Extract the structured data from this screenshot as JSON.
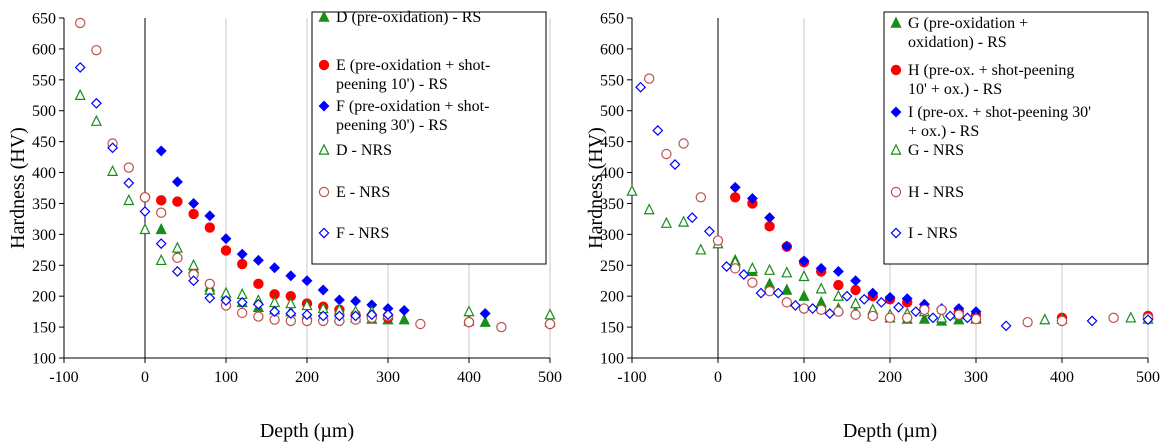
{
  "chart_data": [
    {
      "type": "scatter",
      "xlabel": "Depth (µm)",
      "ylabel": "Hardness (HV)",
      "xlim": [
        -100,
        500
      ],
      "ylim": [
        100,
        650
      ],
      "xticks": [
        -100,
        0,
        100,
        200,
        300,
        400,
        500
      ],
      "yticks": [
        100,
        150,
        200,
        250,
        300,
        350,
        400,
        450,
        500,
        550,
        600,
        650
      ],
      "grid": "vertical",
      "legend_position": "top-right",
      "series": [
        {
          "name": "D (pre-oxidation) - RS",
          "marker": "triangle",
          "filled": true,
          "color": "#1a8c1a",
          "x": [
            20,
            40,
            60,
            80,
            100,
            120,
            140,
            160,
            180,
            200,
            220,
            240,
            260,
            280,
            300,
            320,
            400,
            420,
            500
          ],
          "y": [
            308,
            268,
            245,
            215,
            200,
            190,
            182,
            178,
            175,
            170,
            168,
            166,
            165,
            163,
            162,
            162,
            160,
            158,
            158
          ]
        },
        {
          "name": "E (pre-oxidation + shot-peening 10') - RS",
          "marker": "circle",
          "filled": true,
          "color": "#ff0000",
          "x": [
            0,
            20,
            40,
            60,
            80,
            100,
            120,
            140,
            160,
            180,
            200,
            220,
            240,
            260,
            280,
            300,
            400,
            500
          ],
          "y": [
            360,
            355,
            353,
            333,
            311,
            274,
            252,
            220,
            203,
            200,
            188,
            183,
            178,
            170,
            168,
            165,
            158,
            155
          ]
        },
        {
          "name": "F (pre-oxidation + shot-peening 30') - RS",
          "marker": "diamond",
          "filled": true,
          "color": "#0000ff",
          "x": [
            20,
            40,
            60,
            80,
            100,
            120,
            140,
            160,
            180,
            200,
            220,
            240,
            260,
            280,
            300,
            320,
            420,
            500
          ],
          "y": [
            435,
            385,
            350,
            330,
            293,
            268,
            258,
            246,
            233,
            225,
            210,
            194,
            192,
            186,
            180,
            177,
            172,
            156
          ]
        },
        {
          "name": "D - NRS",
          "marker": "triangle",
          "filled": false,
          "color": "#1a8c1a",
          "x": [
            -80,
            -60,
            -40,
            -20,
            0,
            20,
            40,
            60,
            80,
            100,
            120,
            140,
            160,
            180,
            200,
            220,
            240,
            260,
            280,
            300,
            400,
            500
          ],
          "y": [
            525,
            483,
            402,
            355,
            308,
            258,
            278,
            250,
            210,
            205,
            203,
            193,
            190,
            188,
            185,
            180,
            178,
            175,
            175,
            170,
            175,
            170
          ]
        },
        {
          "name": "E - NRS",
          "marker": "circle",
          "filled": false,
          "color": "#c0504d",
          "x": [
            -80,
            -60,
            -40,
            -20,
            0,
            20,
            40,
            60,
            80,
            100,
            120,
            140,
            160,
            180,
            200,
            220,
            240,
            260,
            280,
            300,
            340,
            400,
            440,
            500
          ],
          "y": [
            642,
            598,
            447,
            408,
            360,
            335,
            262,
            235,
            220,
            185,
            173,
            167,
            162,
            160,
            160,
            160,
            160,
            162,
            165,
            168,
            155,
            158,
            150,
            155
          ]
        },
        {
          "name": "F - NRS",
          "marker": "diamond",
          "filled": false,
          "color": "#0000ff",
          "x": [
            -80,
            -60,
            -40,
            -20,
            0,
            20,
            40,
            60,
            80,
            100,
            120,
            140,
            160,
            180,
            200,
            220,
            240,
            260,
            280,
            300
          ],
          "y": [
            570,
            512,
            440,
            383,
            337,
            285,
            240,
            225,
            197,
            193,
            190,
            187,
            175,
            172,
            170,
            168,
            168,
            168,
            170,
            170
          ]
        }
      ]
    },
    {
      "type": "scatter",
      "xlabel": "Depth (µm)",
      "ylabel": "Hardness (HV)",
      "xlim": [
        -100,
        500
      ],
      "ylim": [
        100,
        650
      ],
      "xticks": [
        -100,
        0,
        100,
        200,
        300,
        400,
        500
      ],
      "yticks": [
        100,
        150,
        200,
        250,
        300,
        350,
        400,
        450,
        500,
        550,
        600,
        650
      ],
      "grid": "vertical",
      "legend_position": "top-right",
      "series": [
        {
          "name": "G (pre-oxidation + oxidation) - RS",
          "marker": "triangle",
          "filled": true,
          "color": "#1a8c1a",
          "x": [
            20,
            40,
            60,
            80,
            100,
            120,
            140,
            160,
            180,
            200,
            220,
            240,
            260,
            280,
            300
          ],
          "y": [
            258,
            240,
            220,
            210,
            200,
            190,
            180,
            175,
            172,
            165,
            163,
            163,
            160,
            162,
            163
          ]
        },
        {
          "name": "H (pre-ox. + shot-peening 10' + ox.) - RS",
          "marker": "circle",
          "filled": true,
          "color": "#ff0000",
          "x": [
            20,
            40,
            60,
            80,
            100,
            120,
            140,
            160,
            180,
            200,
            220,
            240,
            260,
            280,
            300,
            400,
            500
          ],
          "y": [
            360,
            350,
            313,
            280,
            255,
            240,
            218,
            210,
            200,
            195,
            190,
            180,
            178,
            175,
            170,
            165,
            168
          ]
        },
        {
          "name": "I (pre-ox. + shot-peening 30' + ox.) - RS",
          "marker": "diamond",
          "filled": true,
          "color": "#0000ff",
          "x": [
            20,
            40,
            60,
            80,
            100,
            120,
            140,
            160,
            180,
            200,
            220,
            240,
            260,
            280,
            300,
            400,
            500
          ],
          "y": [
            376,
            358,
            327,
            281,
            257,
            245,
            240,
            225,
            205,
            198,
            196,
            187,
            180,
            180,
            175,
            160,
            163
          ]
        },
        {
          "name": "G - NRS",
          "marker": "triangle",
          "filled": false,
          "color": "#1a8c1a",
          "x": [
            -100,
            -80,
            -60,
            -40,
            -20,
            0,
            20,
            40,
            60,
            80,
            100,
            120,
            140,
            160,
            180,
            200,
            220,
            240,
            260,
            280,
            300,
            380,
            400,
            480,
            500
          ],
          "y": [
            370,
            340,
            318,
            320,
            275,
            285,
            255,
            245,
            242,
            238,
            232,
            212,
            200,
            188,
            178,
            170,
            172,
            175,
            165,
            170,
            165,
            162,
            163,
            165,
            163
          ]
        },
        {
          "name": "H - NRS",
          "marker": "circle",
          "filled": false,
          "color": "#c0504d",
          "x": [
            -80,
            -60,
            -40,
            -20,
            0,
            20,
            40,
            60,
            80,
            100,
            120,
            140,
            160,
            180,
            200,
            220,
            240,
            260,
            280,
            300,
            360,
            400,
            460,
            500
          ],
          "y": [
            552,
            430,
            447,
            360,
            290,
            245,
            222,
            208,
            190,
            180,
            178,
            175,
            170,
            168,
            165,
            165,
            178,
            178,
            170,
            163,
            158,
            160,
            165,
            165
          ]
        },
        {
          "name": "I - NRS",
          "marker": "diamond",
          "filled": false,
          "color": "#0000ff",
          "x": [
            -90,
            -70,
            -50,
            -30,
            -10,
            10,
            30,
            50,
            70,
            90,
            110,
            130,
            150,
            170,
            190,
            210,
            230,
            250,
            270,
            290,
            335,
            435,
            500
          ],
          "y": [
            538,
            468,
            413,
            327,
            305,
            248,
            235,
            205,
            205,
            185,
            180,
            172,
            200,
            195,
            190,
            182,
            175,
            165,
            168,
            165,
            152,
            160,
            162
          ]
        }
      ]
    }
  ]
}
